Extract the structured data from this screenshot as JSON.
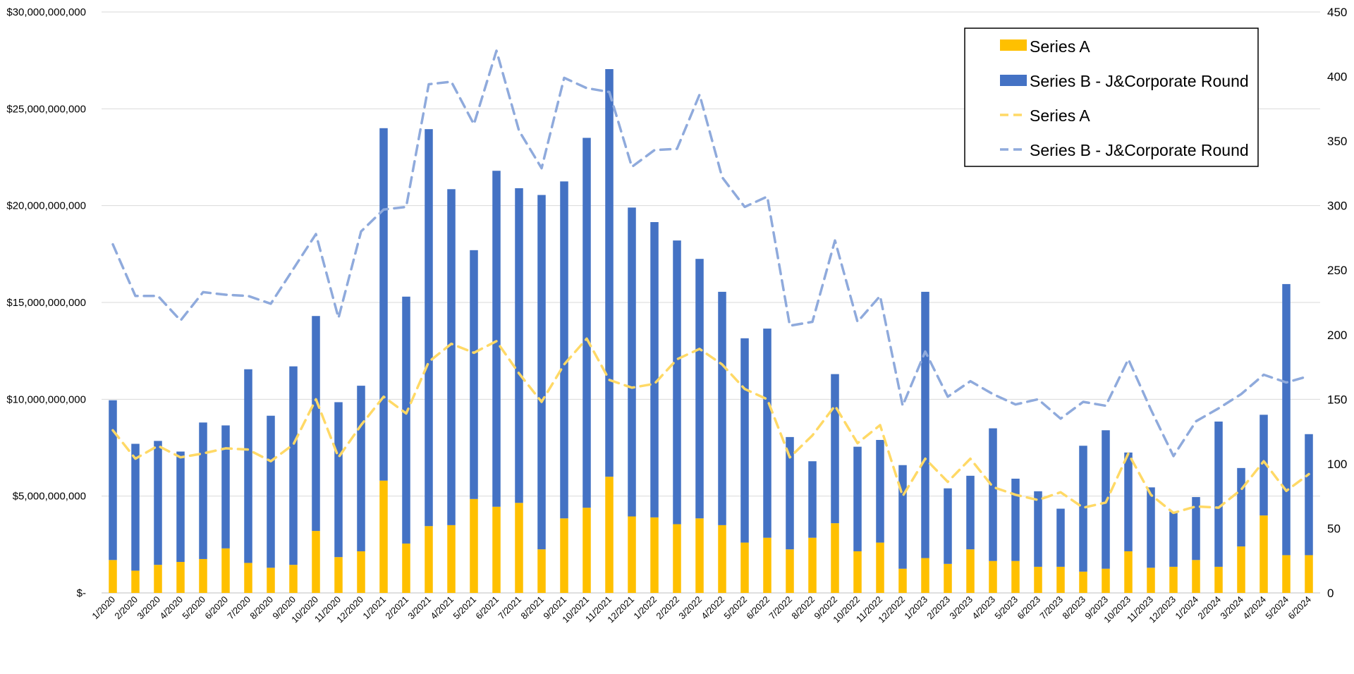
{
  "chart_data": {
    "type": "bar",
    "stacked": true,
    "categories": [
      "1/2020",
      "2/2020",
      "3/2020",
      "4/2020",
      "5/2020",
      "6/2020",
      "7/2020",
      "8/2020",
      "9/2020",
      "10/2020",
      "11/2020",
      "12/2020",
      "1/2021",
      "2/2021",
      "3/2021",
      "4/2021",
      "5/2021",
      "6/2021",
      "7/2021",
      "8/2021",
      "9/2021",
      "10/2021",
      "11/2021",
      "12/2021",
      "1/2022",
      "2/2022",
      "3/2022",
      "4/2022",
      "5/2022",
      "6/2022",
      "7/2022",
      "8/2022",
      "9/2022",
      "10/2022",
      "11/2022",
      "12/2022",
      "1/2023",
      "2/2023",
      "3/2023",
      "4/2023",
      "5/2023",
      "6/2023",
      "7/2023",
      "8/2023",
      "9/2023",
      "10/2023",
      "11/2023",
      "12/2023",
      "1/2024",
      "2/2024",
      "3/2024",
      "4/2024",
      "5/2024",
      "6/2024"
    ],
    "bar_series": [
      {
        "name": "Series A",
        "color": "#FFC000",
        "values": [
          1700000000,
          1150000000,
          1450000000,
          1600000000,
          1750000000,
          2300000000,
          1550000000,
          1300000000,
          1450000000,
          3200000000,
          1850000000,
          2150000000,
          5800000000,
          2550000000,
          3450000000,
          3500000000,
          4850000000,
          4450000000,
          4650000000,
          2250000000,
          3850000000,
          4400000000,
          6000000000,
          3950000000,
          3900000000,
          3550000000,
          3850000000,
          3500000000,
          2600000000,
          2850000000,
          2250000000,
          2850000000,
          3600000000,
          2150000000,
          2600000000,
          1250000000,
          1800000000,
          1500000000,
          2250000000,
          1650000000,
          1650000000,
          1350000000,
          1350000000,
          1100000000,
          1250000000,
          2150000000,
          1300000000,
          1350000000,
          1700000000,
          1350000000,
          2400000000,
          4000000000,
          1950000000,
          1950000000
        ]
      },
      {
        "name": "Series B - J&Corporate Round",
        "color": "#4472C4",
        "values": [
          8250000000,
          6550000000,
          6400000000,
          5700000000,
          7050000000,
          6350000000,
          10000000000,
          7850000000,
          10250000000,
          11100000000,
          8000000000,
          8550000000,
          18200000000,
          12750000000,
          20500000000,
          17350000000,
          12850000000,
          17350000000,
          16250000000,
          18300000000,
          17400000000,
          19100000000,
          21050000000,
          15950000000,
          15250000000,
          14650000000,
          13400000000,
          12050000000,
          10550000000,
          10800000000,
          5800000000,
          3950000000,
          7700000000,
          5400000000,
          5300000000,
          5350000000,
          13750000000,
          3900000000,
          3800000000,
          6850000000,
          4250000000,
          3900000000,
          3000000000,
          6500000000,
          7150000000,
          5100000000,
          4150000000,
          2850000000,
          3250000000,
          7500000000,
          4050000000,
          5200000000,
          14000000000,
          6250000000
        ]
      }
    ],
    "line_series": [
      {
        "name": "Series A",
        "color": "#FFD966",
        "axis": "right",
        "values": [
          126,
          104,
          114,
          105,
          108,
          112,
          111,
          102,
          115,
          150,
          105,
          130,
          152,
          139,
          179,
          193,
          186,
          195,
          170,
          148,
          177,
          197,
          165,
          159,
          162,
          181,
          189,
          177,
          158,
          150,
          105,
          122,
          145,
          116,
          130,
          75,
          104,
          86,
          104,
          82,
          76,
          72,
          78,
          66,
          70,
          108,
          76,
          62,
          67,
          66,
          80,
          102,
          79,
          92
        ]
      },
      {
        "name": "Series B - J&Corporate Round",
        "color": "#8FAADC",
        "axis": "right",
        "values": [
          270,
          230,
          230,
          211,
          233,
          231,
          230,
          224,
          251,
          278,
          213,
          280,
          297,
          299,
          394,
          396,
          363,
          420,
          358,
          329,
          399,
          391,
          388,
          330,
          343,
          344,
          386,
          322,
          299,
          307,
          207,
          210,
          273,
          210,
          230,
          145,
          187,
          152,
          164,
          154,
          146,
          150,
          135,
          148,
          145,
          181,
          142,
          106,
          133,
          143,
          154,
          169,
          163,
          168
        ]
      }
    ],
    "y_left": {
      "min": 0,
      "max": 30000000000,
      "ticks": [
        "$-",
        "$5,000,000,000",
        "$10,000,000,000",
        "$15,000,000,000",
        "$20,000,000,000",
        "$25,000,000,000",
        "$30,000,000,000"
      ]
    },
    "y_right": {
      "min": 0,
      "max": 450,
      "ticks": [
        "0",
        "50",
        "100",
        "150",
        "200",
        "250",
        "300",
        "350",
        "400",
        "450"
      ]
    },
    "grid": true,
    "legend": {
      "position": "top-right",
      "entries": [
        {
          "label": "Series A",
          "kind": "bar",
          "color": "#FFC000"
        },
        {
          "label": "Series B - J&Corporate Round",
          "kind": "bar",
          "color": "#4472C4"
        },
        {
          "label": "Series A",
          "kind": "line",
          "color": "#FFD966"
        },
        {
          "label": "Series B - J&Corporate Round",
          "kind": "line",
          "color": "#8FAADC"
        }
      ]
    },
    "title": "",
    "xlabel": "",
    "ylabel": ""
  }
}
